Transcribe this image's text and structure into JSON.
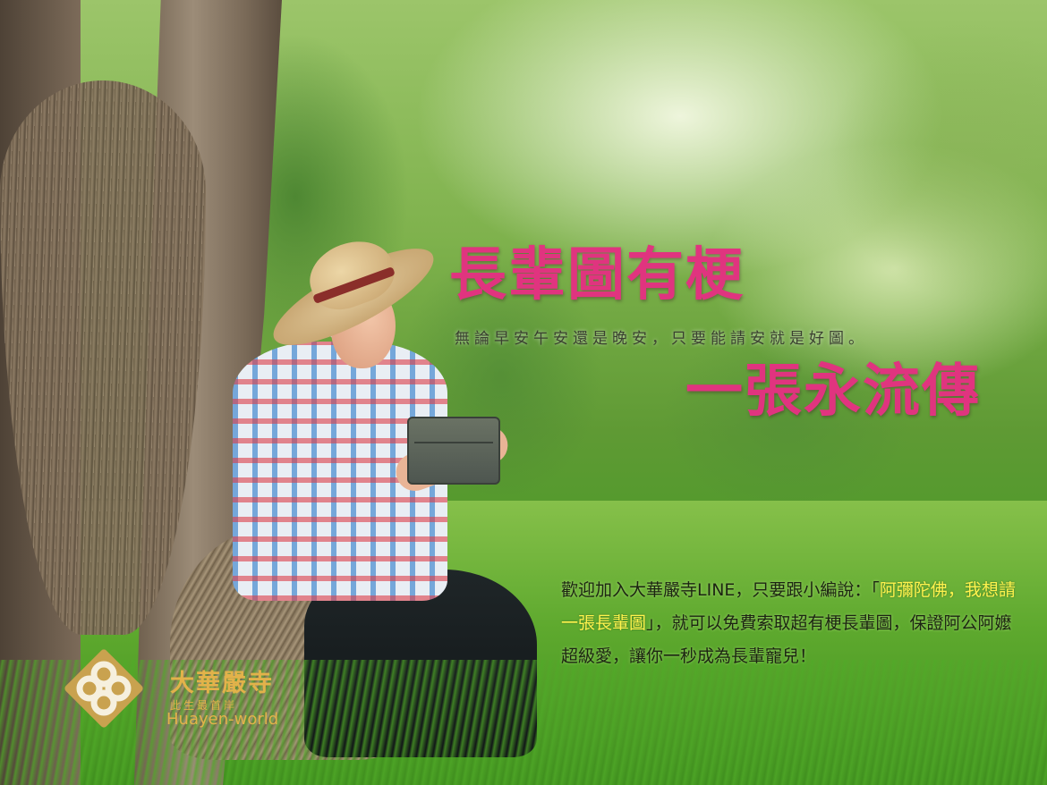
{
  "headline": "長輩圖有梗",
  "subline": "無論早安午安還是晚安，只要能請安就是好圖。",
  "tagline": "一張永流傳",
  "promo": {
    "part1": "歡迎加入大華嚴寺LINE，只要跟小編說：「",
    "highlight": "阿彌陀佛，我想請一張長輩圖",
    "part2": "」，就可以免費索取超有梗長輩圖，保證阿公阿嬤超級愛，讓你一秒成為長輩寵兒！"
  },
  "logo": {
    "name_cn": "大華嚴寺",
    "name_sub": "此生最首岸",
    "name_en": "Huayen-world",
    "color": "#e2b24a"
  },
  "colors": {
    "headline": "#e0347f",
    "highlight": "#fff34d"
  }
}
